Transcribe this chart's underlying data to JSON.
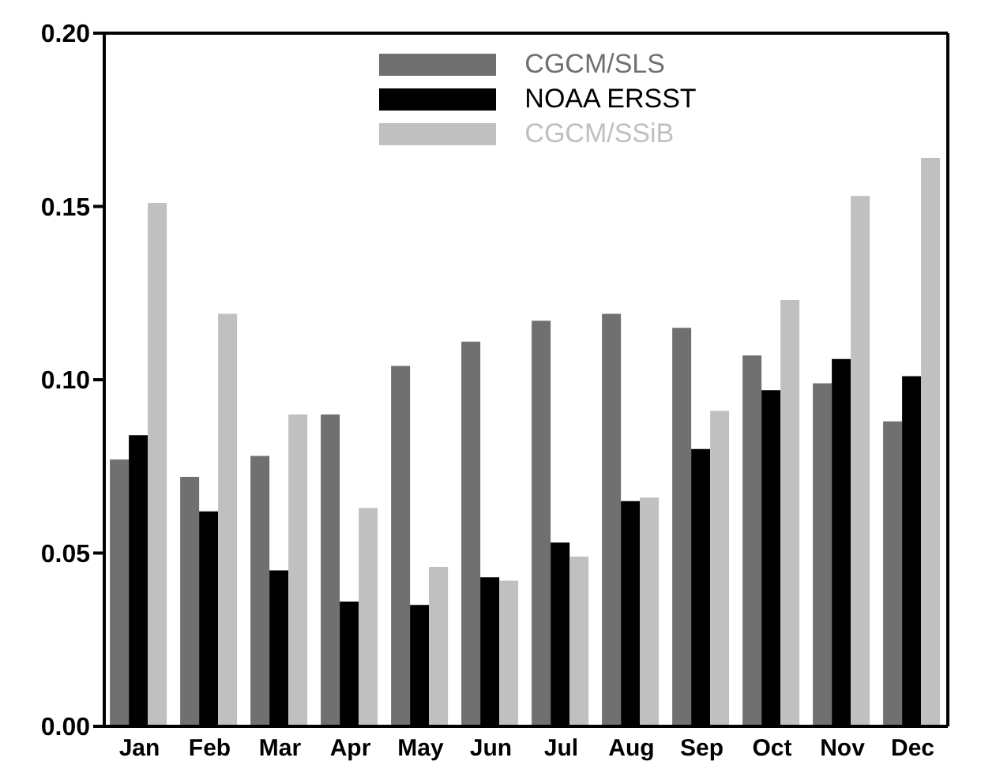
{
  "chart_data": {
    "type": "bar",
    "categories": [
      "Jan",
      "Feb",
      "Mar",
      "Apr",
      "May",
      "Jun",
      "Jul",
      "Aug",
      "Sep",
      "Oct",
      "Nov",
      "Dec"
    ],
    "series": [
      {
        "name": "CGCM/SLS",
        "color": "#707070",
        "values": [
          0.077,
          0.072,
          0.078,
          0.09,
          0.104,
          0.111,
          0.117,
          0.119,
          0.115,
          0.107,
          0.099,
          0.088
        ]
      },
      {
        "name": "NOAA ERSST",
        "color": "#000000",
        "values": [
          0.084,
          0.062,
          0.045,
          0.036,
          0.035,
          0.043,
          0.053,
          0.065,
          0.08,
          0.097,
          0.106,
          0.101
        ]
      },
      {
        "name": "CGCM/SSiB",
        "color": "#c0c0c0",
        "values": [
          0.151,
          0.119,
          0.09,
          0.063,
          0.046,
          0.042,
          0.049,
          0.066,
          0.091,
          0.123,
          0.153,
          0.164
        ]
      }
    ],
    "ylim": [
      0,
      0.2
    ],
    "yticks": [
      {
        "value": 0,
        "label": "0.00"
      },
      {
        "value": 0.05,
        "label": "0.05"
      },
      {
        "value": 0.1,
        "label": "0.10"
      },
      {
        "value": 0.15,
        "label": "0.15"
      },
      {
        "value": 0.2,
        "label": "0.20"
      }
    ],
    "grid": false,
    "legend": "top"
  }
}
